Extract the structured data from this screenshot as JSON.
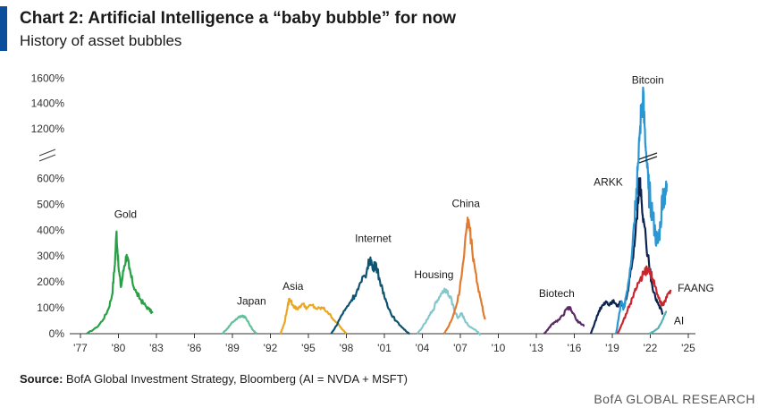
{
  "header": {
    "title": "Chart 2: Artificial Intelligence a “baby bubble” for now",
    "subtitle": "History of asset bubbles"
  },
  "footer": {
    "source_label": "Source:",
    "source_text": "BofA Global Investment Strategy, Bloomberg (AI = NVDA + MSFT)",
    "brand": "BofA GLOBAL RESEARCH"
  },
  "colors": {
    "accent": "#0b4f9c",
    "axis": "#333333"
  },
  "chart_data": {
    "type": "line",
    "xlabel": "",
    "ylabel": "",
    "x_ticks": [
      "'77",
      "'80",
      "'83",
      "'86",
      "'89",
      "'92",
      "'95",
      "'98",
      "'01",
      "'04",
      "'07",
      "'10",
      "'13",
      "'16",
      "'19",
      "'22",
      "'25"
    ],
    "y_ticks_lower": [
      "0%",
      "100%",
      "200%",
      "300%",
      "400%",
      "500%",
      "600%"
    ],
    "y_ticks_upper": [
      "1200%",
      "1400%",
      "1600%"
    ],
    "y_axis_break": true,
    "xlim": [
      1977,
      2025
    ],
    "ylim": [
      0,
      1600
    ],
    "grid": false,
    "series": [
      {
        "name": "Gold",
        "color": "#27a046",
        "points": [
          [
            1977.5,
            0
          ],
          [
            1978.3,
            25
          ],
          [
            1978.8,
            55
          ],
          [
            1979.2,
            95
          ],
          [
            1979.5,
            150
          ],
          [
            1979.7,
            260
          ],
          [
            1979.85,
            395
          ],
          [
            1980.0,
            260
          ],
          [
            1980.2,
            180
          ],
          [
            1980.45,
            260
          ],
          [
            1980.65,
            305
          ],
          [
            1980.85,
            250
          ],
          [
            1981.1,
            200
          ],
          [
            1981.4,
            160
          ],
          [
            1981.7,
            135
          ],
          [
            1982.0,
            115
          ],
          [
            1982.4,
            95
          ],
          [
            1982.7,
            80
          ]
        ]
      },
      {
        "name": "Japan",
        "color": "#5ec39b",
        "points": [
          [
            1988.2,
            0
          ],
          [
            1988.6,
            20
          ],
          [
            1989.0,
            45
          ],
          [
            1989.4,
            60
          ],
          [
            1989.8,
            70
          ],
          [
            1990.0,
            65
          ],
          [
            1990.3,
            40
          ],
          [
            1990.6,
            15
          ],
          [
            1990.9,
            0
          ]
        ]
      },
      {
        "name": "Asia",
        "color": "#e9a723",
        "points": [
          [
            1992.8,
            0
          ],
          [
            1993.1,
            40
          ],
          [
            1993.3,
            90
          ],
          [
            1993.5,
            135
          ],
          [
            1993.8,
            110
          ],
          [
            1994.1,
            95
          ],
          [
            1994.5,
            115
          ],
          [
            1994.9,
            100
          ],
          [
            1995.3,
            110
          ],
          [
            1995.7,
            95
          ],
          [
            1996.1,
            100
          ],
          [
            1996.5,
            85
          ],
          [
            1996.9,
            60
          ],
          [
            1997.3,
            40
          ],
          [
            1997.7,
            15
          ],
          [
            1998.0,
            0
          ]
        ]
      },
      {
        "name": "Internet",
        "color": "#0d5470",
        "points": [
          [
            1996.8,
            0
          ],
          [
            1997.2,
            30
          ],
          [
            1997.6,
            70
          ],
          [
            1998.0,
            100
          ],
          [
            1998.4,
            130
          ],
          [
            1998.8,
            160
          ],
          [
            1999.2,
            200
          ],
          [
            1999.6,
            240
          ],
          [
            1999.9,
            295
          ],
          [
            2000.1,
            245
          ],
          [
            2000.3,
            275
          ],
          [
            2000.6,
            215
          ],
          [
            2000.9,
            155
          ],
          [
            2001.2,
            120
          ],
          [
            2001.5,
            80
          ],
          [
            2001.9,
            50
          ],
          [
            2002.3,
            30
          ],
          [
            2002.7,
            10
          ],
          [
            2003.0,
            0
          ]
        ]
      },
      {
        "name": "Housing",
        "color": "#83c7cc",
        "points": [
          [
            2003.6,
            0
          ],
          [
            2004.0,
            25
          ],
          [
            2004.4,
            55
          ],
          [
            2004.8,
            90
          ],
          [
            2005.2,
            130
          ],
          [
            2005.6,
            165
          ],
          [
            2005.9,
            170
          ],
          [
            2006.2,
            145
          ],
          [
            2006.5,
            95
          ],
          [
            2006.8,
            60
          ],
          [
            2007.1,
            80
          ],
          [
            2007.4,
            45
          ],
          [
            2007.8,
            25
          ],
          [
            2008.2,
            15
          ],
          [
            2008.6,
            -5
          ]
        ]
      },
      {
        "name": "China",
        "color": "#e07b2f",
        "points": [
          [
            2005.7,
            0
          ],
          [
            2006.1,
            30
          ],
          [
            2006.5,
            80
          ],
          [
            2006.9,
            150
          ],
          [
            2007.2,
            270
          ],
          [
            2007.5,
            410
          ],
          [
            2007.65,
            440
          ],
          [
            2007.85,
            360
          ],
          [
            2008.1,
            270
          ],
          [
            2008.4,
            180
          ],
          [
            2008.7,
            110
          ],
          [
            2008.95,
            55
          ]
        ]
      },
      {
        "name": "Biotech",
        "color": "#5b2a65",
        "points": [
          [
            2013.6,
            0
          ],
          [
            2013.9,
            15
          ],
          [
            2014.2,
            35
          ],
          [
            2014.5,
            45
          ],
          [
            2014.8,
            55
          ],
          [
            2015.1,
            70
          ],
          [
            2015.4,
            95
          ],
          [
            2015.6,
            100
          ],
          [
            2015.9,
            80
          ],
          [
            2016.2,
            50
          ],
          [
            2016.5,
            40
          ],
          [
            2016.8,
            30
          ]
        ]
      },
      {
        "name": "ARKK",
        "color": "#0c2350",
        "points": [
          [
            2017.3,
            0
          ],
          [
            2017.6,
            40
          ],
          [
            2017.9,
            80
          ],
          [
            2018.2,
            110
          ],
          [
            2018.5,
            125
          ],
          [
            2018.8,
            115
          ],
          [
            2019.1,
            130
          ],
          [
            2019.4,
            110
          ],
          [
            2019.7,
            120
          ],
          [
            2019.9,
            100
          ],
          [
            2020.2,
            160
          ],
          [
            2020.5,
            250
          ],
          [
            2020.8,
            370
          ],
          [
            2021.0,
            500
          ],
          [
            2021.15,
            600
          ],
          [
            2021.3,
            520
          ],
          [
            2021.5,
            430
          ],
          [
            2021.8,
            300
          ],
          [
            2022.1,
            200
          ],
          [
            2022.4,
            140
          ],
          [
            2022.7,
            110
          ],
          [
            2023.0,
            75
          ]
        ]
      },
      {
        "name": "Bitcoin",
        "color": "#2a97d3",
        "points": [
          [
            2019.3,
            0
          ],
          [
            2019.5,
            60
          ],
          [
            2019.7,
            120
          ],
          [
            2019.9,
            100
          ],
          [
            2020.1,
            150
          ],
          [
            2020.4,
            250
          ],
          [
            2020.7,
            420
          ],
          [
            2020.9,
            560
          ],
          [
            2021.05,
            700
          ],
          [
            2021.15,
            1100
          ],
          [
            2021.3,
            1350
          ],
          [
            2021.45,
            1500
          ],
          [
            2021.6,
            1000
          ],
          [
            2021.7,
            700
          ],
          [
            2021.85,
            560
          ],
          [
            2022.0,
            520
          ],
          [
            2022.2,
            450
          ],
          [
            2022.4,
            380
          ],
          [
            2022.6,
            350
          ],
          [
            2022.8,
            420
          ],
          [
            2023.0,
            560
          ],
          [
            2023.15,
            500
          ],
          [
            2023.3,
            580
          ]
        ]
      },
      {
        "name": "FAANG",
        "color": "#c7262e",
        "points": [
          [
            2019.4,
            0
          ],
          [
            2019.8,
            40
          ],
          [
            2020.2,
            90
          ],
          [
            2020.6,
            140
          ],
          [
            2020.9,
            175
          ],
          [
            2021.2,
            210
          ],
          [
            2021.5,
            230
          ],
          [
            2021.8,
            250
          ],
          [
            2022.0,
            240
          ],
          [
            2022.2,
            210
          ],
          [
            2022.5,
            160
          ],
          [
            2022.8,
            120
          ],
          [
            2023.0,
            110
          ],
          [
            2023.3,
            140
          ],
          [
            2023.6,
            170
          ]
        ]
      },
      {
        "name": "AI",
        "color": "#56b2b6",
        "points": [
          [
            2021.9,
            0
          ],
          [
            2022.3,
            10
          ],
          [
            2022.6,
            20
          ],
          [
            2022.9,
            45
          ],
          [
            2023.1,
            70
          ],
          [
            2023.3,
            85
          ]
        ]
      }
    ],
    "labels": [
      {
        "series": "Gold",
        "text": "Gold"
      },
      {
        "series": "Japan",
        "text": "Japan"
      },
      {
        "series": "Asia",
        "text": "Asia"
      },
      {
        "series": "Internet",
        "text": "Internet"
      },
      {
        "series": "Housing",
        "text": "Housing"
      },
      {
        "series": "China",
        "text": "China"
      },
      {
        "series": "Biotech",
        "text": "Biotech"
      },
      {
        "series": "ARKK",
        "text": "ARKK"
      },
      {
        "series": "Bitcoin",
        "text": "Bitcoin"
      },
      {
        "series": "FAANG",
        "text": "FAANG"
      },
      {
        "series": "AI",
        "text": "AI"
      }
    ]
  }
}
